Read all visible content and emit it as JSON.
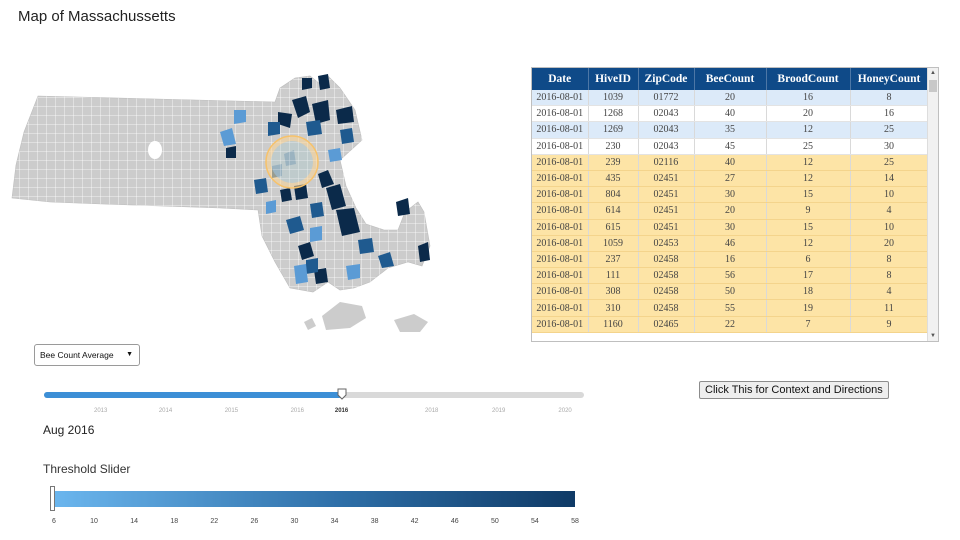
{
  "page": {
    "title": "Map of Massachussetts"
  },
  "map": {
    "shade_colors": [
      "#cccccc",
      "#5b9bd5",
      "#1f5a8f",
      "#0b2a4a",
      "#9fc7e8"
    ],
    "highlight_color": "#fbd391"
  },
  "table": {
    "columns": [
      "Date",
      "HiveID",
      "ZipCode",
      "BeeCount",
      "BroodCount",
      "HoneyCount"
    ],
    "rows": [
      {
        "style": "blue",
        "cells": [
          "2016-08-01",
          "1039",
          "01772",
          "20",
          "16",
          "8"
        ]
      },
      {
        "style": "white",
        "cells": [
          "2016-08-01",
          "1268",
          "02043",
          "40",
          "20",
          "16"
        ]
      },
      {
        "style": "blue",
        "cells": [
          "2016-08-01",
          "1269",
          "02043",
          "35",
          "12",
          "25"
        ]
      },
      {
        "style": "white",
        "cells": [
          "2016-08-01",
          "230",
          "02043",
          "45",
          "25",
          "30"
        ]
      },
      {
        "style": "yellow",
        "cells": [
          "2016-08-01",
          "239",
          "02116",
          "40",
          "12",
          "25"
        ]
      },
      {
        "style": "yellow",
        "cells": [
          "2016-08-01",
          "435",
          "02451",
          "27",
          "12",
          "14"
        ]
      },
      {
        "style": "yellow",
        "cells": [
          "2016-08-01",
          "804",
          "02451",
          "30",
          "15",
          "10"
        ]
      },
      {
        "style": "yellow",
        "cells": [
          "2016-08-01",
          "614",
          "02451",
          "20",
          "9",
          "4"
        ]
      },
      {
        "style": "yellow",
        "cells": [
          "2016-08-01",
          "615",
          "02451",
          "30",
          "15",
          "10"
        ]
      },
      {
        "style": "yellow",
        "cells": [
          "2016-08-01",
          "1059",
          "02453",
          "46",
          "12",
          "20"
        ]
      },
      {
        "style": "yellow",
        "cells": [
          "2016-08-01",
          "237",
          "02458",
          "16",
          "6",
          "8"
        ]
      },
      {
        "style": "yellow",
        "cells": [
          "2016-08-01",
          "111",
          "02458",
          "56",
          "17",
          "8"
        ]
      },
      {
        "style": "yellow",
        "cells": [
          "2016-08-01",
          "308",
          "02458",
          "50",
          "18",
          "4"
        ]
      },
      {
        "style": "yellow",
        "cells": [
          "2016-08-01",
          "310",
          "02458",
          "55",
          "19",
          "11"
        ]
      },
      {
        "style": "yellow",
        "cells": [
          "2016-08-01",
          "1160",
          "02465",
          "22",
          "7",
          "9"
        ]
      }
    ],
    "row_colors": {
      "blue": "#dceaf9",
      "white": "#ffffff",
      "yellow": "#fde4a6"
    },
    "header_color": "#0f4a88",
    "scroll_up_icon": "triangle-up-icon",
    "scroll_down_icon": "triangle-down-icon"
  },
  "dropdown": {
    "selected": "Bee Count Average",
    "icon": "caret-down-icon"
  },
  "time_slider": {
    "ticks": [
      "2013",
      "2014",
      "2015",
      "2016",
      "2016",
      "2018",
      "2019",
      "2020"
    ],
    "tick_positions": [
      0.105,
      0.225,
      0.347,
      0.469,
      0.551,
      0.718,
      0.842,
      0.965
    ],
    "active_index": 4,
    "value_fraction": 0.551,
    "fill_color": "#3c8fd6",
    "readout": "Aug 2016"
  },
  "context_button": {
    "label": "Click This for Context and Directions"
  },
  "threshold_slider": {
    "title": "Threshold Slider",
    "min": 6,
    "max": 58,
    "value": 6,
    "ticks": [
      "6",
      "10",
      "14",
      "18",
      "22",
      "26",
      "30",
      "34",
      "38",
      "42",
      "46",
      "50",
      "54",
      "58"
    ],
    "gradient_colors": [
      "#6bb6ee",
      "#2e6fa8",
      "#0f3a66"
    ]
  }
}
